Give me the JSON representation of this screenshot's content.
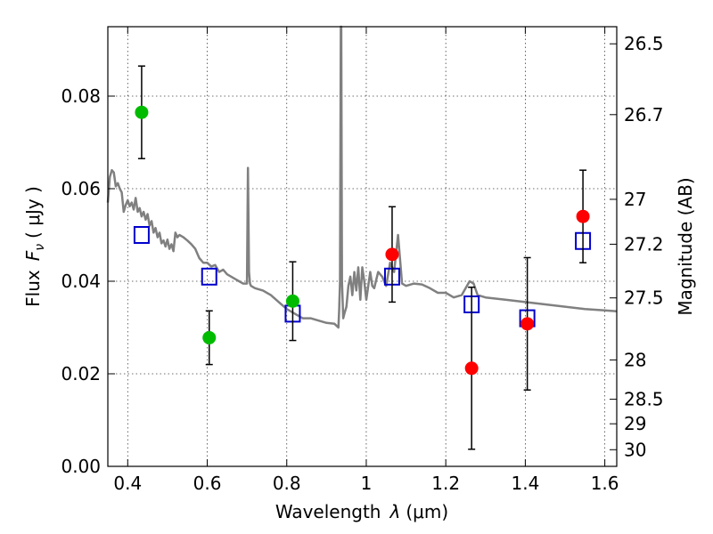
{
  "chart_data": {
    "type": "scatter",
    "title": "",
    "xlabel": "Wavelength",
    "xlabel_symbol": "λ",
    "xlabel_unit": "(μm)",
    "ylabel": "Flux",
    "ylabel_symbol": "F",
    "ylabel_symbol_sub": "ν",
    "ylabel_unit": "( μJy )",
    "y2label": "Magnitude (AB)",
    "xlim": [
      0.35,
      1.63
    ],
    "ylim": [
      0.0,
      0.095
    ],
    "grid": true,
    "x_ticks": [
      0.4,
      0.6,
      0.8,
      1.0,
      1.2,
      1.4,
      1.6
    ],
    "x_tick_labels": [
      "0.4",
      "0.6",
      "0.8",
      "1",
      "1.2",
      "1.4",
      "1.6"
    ],
    "y_ticks": [
      0.0,
      0.02,
      0.04,
      0.06,
      0.08
    ],
    "y_tick_labels": [
      "0.00",
      "0.02",
      "0.04",
      "0.06",
      "0.08"
    ],
    "y2_ticks": [
      {
        "label": "26.5",
        "flux": 0.0913
      },
      {
        "label": "26.7",
        "flux": 0.076
      },
      {
        "label": "27",
        "flux": 0.0577
      },
      {
        "label": "27.2",
        "flux": 0.048
      },
      {
        "label": "27.5",
        "flux": 0.0364
      },
      {
        "label": "28",
        "flux": 0.023
      },
      {
        "label": "28.5",
        "flux": 0.0145
      },
      {
        "label": "29",
        "flux": 0.0092
      },
      {
        "label": "30",
        "flux": 0.0036
      }
    ],
    "colors": {
      "model": "#808080",
      "model_photometry": "#0000cc",
      "observed_green": "#00bb00",
      "observed_red": "#ff0000",
      "errorbar": "#000000"
    },
    "series": [
      {
        "kind": "line",
        "color": "#808080",
        "x": [
          0.35,
          0.355,
          0.36,
          0.365,
          0.37,
          0.375,
          0.38,
          0.385,
          0.39,
          0.395,
          0.4,
          0.405,
          0.41,
          0.415,
          0.42,
          0.425,
          0.43,
          0.435,
          0.44,
          0.445,
          0.45,
          0.455,
          0.46,
          0.465,
          0.47,
          0.475,
          0.48,
          0.485,
          0.49,
          0.495,
          0.5,
          0.505,
          0.51,
          0.515,
          0.52,
          0.525,
          0.53,
          0.54,
          0.55,
          0.56,
          0.57,
          0.58,
          0.59,
          0.6,
          0.61,
          0.62,
          0.63,
          0.64,
          0.65,
          0.66,
          0.67,
          0.68,
          0.69,
          0.7,
          0.7025,
          0.705,
          0.7075,
          0.71,
          0.72,
          0.74,
          0.76,
          0.78,
          0.8,
          0.82,
          0.84,
          0.86,
          0.88,
          0.9,
          0.92,
          0.93,
          0.932,
          0.934,
          0.936,
          0.937,
          0.939,
          0.942,
          0.945,
          0.95,
          0.955,
          0.96,
          0.965,
          0.97,
          0.975,
          0.98,
          0.985,
          0.99,
          0.995,
          1.0,
          1.005,
          1.01,
          1.015,
          1.02,
          1.03,
          1.04,
          1.05,
          1.06,
          1.07,
          1.08,
          1.09,
          1.1,
          1.12,
          1.14,
          1.16,
          1.18,
          1.2,
          1.22,
          1.24,
          1.26,
          1.27,
          1.28,
          1.3,
          1.35,
          1.4,
          1.45,
          1.5,
          1.55,
          1.6,
          1.63
        ],
        "y": [
          0.057,
          0.0625,
          0.064,
          0.0635,
          0.0605,
          0.0612,
          0.06,
          0.0592,
          0.055,
          0.0565,
          0.0575,
          0.0562,
          0.057,
          0.0555,
          0.058,
          0.055,
          0.0558,
          0.054,
          0.055,
          0.0533,
          0.0545,
          0.052,
          0.053,
          0.0505,
          0.0515,
          0.0495,
          0.0505,
          0.0482,
          0.0488,
          0.0475,
          0.049,
          0.047,
          0.048,
          0.0465,
          0.0505,
          0.0495,
          0.05,
          0.0495,
          0.0488,
          0.048,
          0.047,
          0.045,
          0.044,
          0.044,
          0.0432,
          0.0435,
          0.042,
          0.0425,
          0.0415,
          0.041,
          0.0405,
          0.04,
          0.0395,
          0.0395,
          0.0645,
          0.042,
          0.0395,
          0.039,
          0.0385,
          0.038,
          0.037,
          0.0355,
          0.034,
          0.033,
          0.032,
          0.032,
          0.0315,
          0.031,
          0.0308,
          0.03,
          0.034,
          0.04,
          0.095,
          0.095,
          0.04,
          0.032,
          0.033,
          0.0345,
          0.039,
          0.041,
          0.037,
          0.042,
          0.038,
          0.043,
          0.036,
          0.043,
          0.04,
          0.036,
          0.039,
          0.042,
          0.039,
          0.0385,
          0.042,
          0.041,
          0.039,
          0.044,
          0.042,
          0.05,
          0.0395,
          0.039,
          0.0395,
          0.0393,
          0.0385,
          0.0375,
          0.0375,
          0.0365,
          0.037,
          0.04,
          0.0395,
          0.037,
          0.0365,
          0.036,
          0.0355,
          0.035,
          0.0345,
          0.034,
          0.0337,
          0.0335
        ]
      },
      {
        "kind": "square",
        "color": "#0000cc",
        "x": [
          0.435,
          0.605,
          0.815,
          1.065,
          1.265,
          1.405,
          1.545
        ],
        "y": [
          0.05,
          0.041,
          0.033,
          0.041,
          0.035,
          0.032,
          0.0487
        ]
      },
      {
        "kind": "errorbar-point",
        "color": "#00bb00",
        "x": [
          0.435,
          0.605,
          0.815
        ],
        "y": [
          0.0765,
          0.0278,
          0.0357
        ],
        "yerr": [
          0.01,
          0.0058,
          0.0085
        ]
      },
      {
        "kind": "errorbar-point",
        "color": "#ff0000",
        "x": [
          1.065,
          1.265,
          1.405,
          1.545
        ],
        "y": [
          0.0458,
          0.0212,
          0.0308,
          0.054
        ],
        "yerr": [
          0.0103,
          0.0175,
          0.0143,
          0.01
        ]
      }
    ]
  }
}
